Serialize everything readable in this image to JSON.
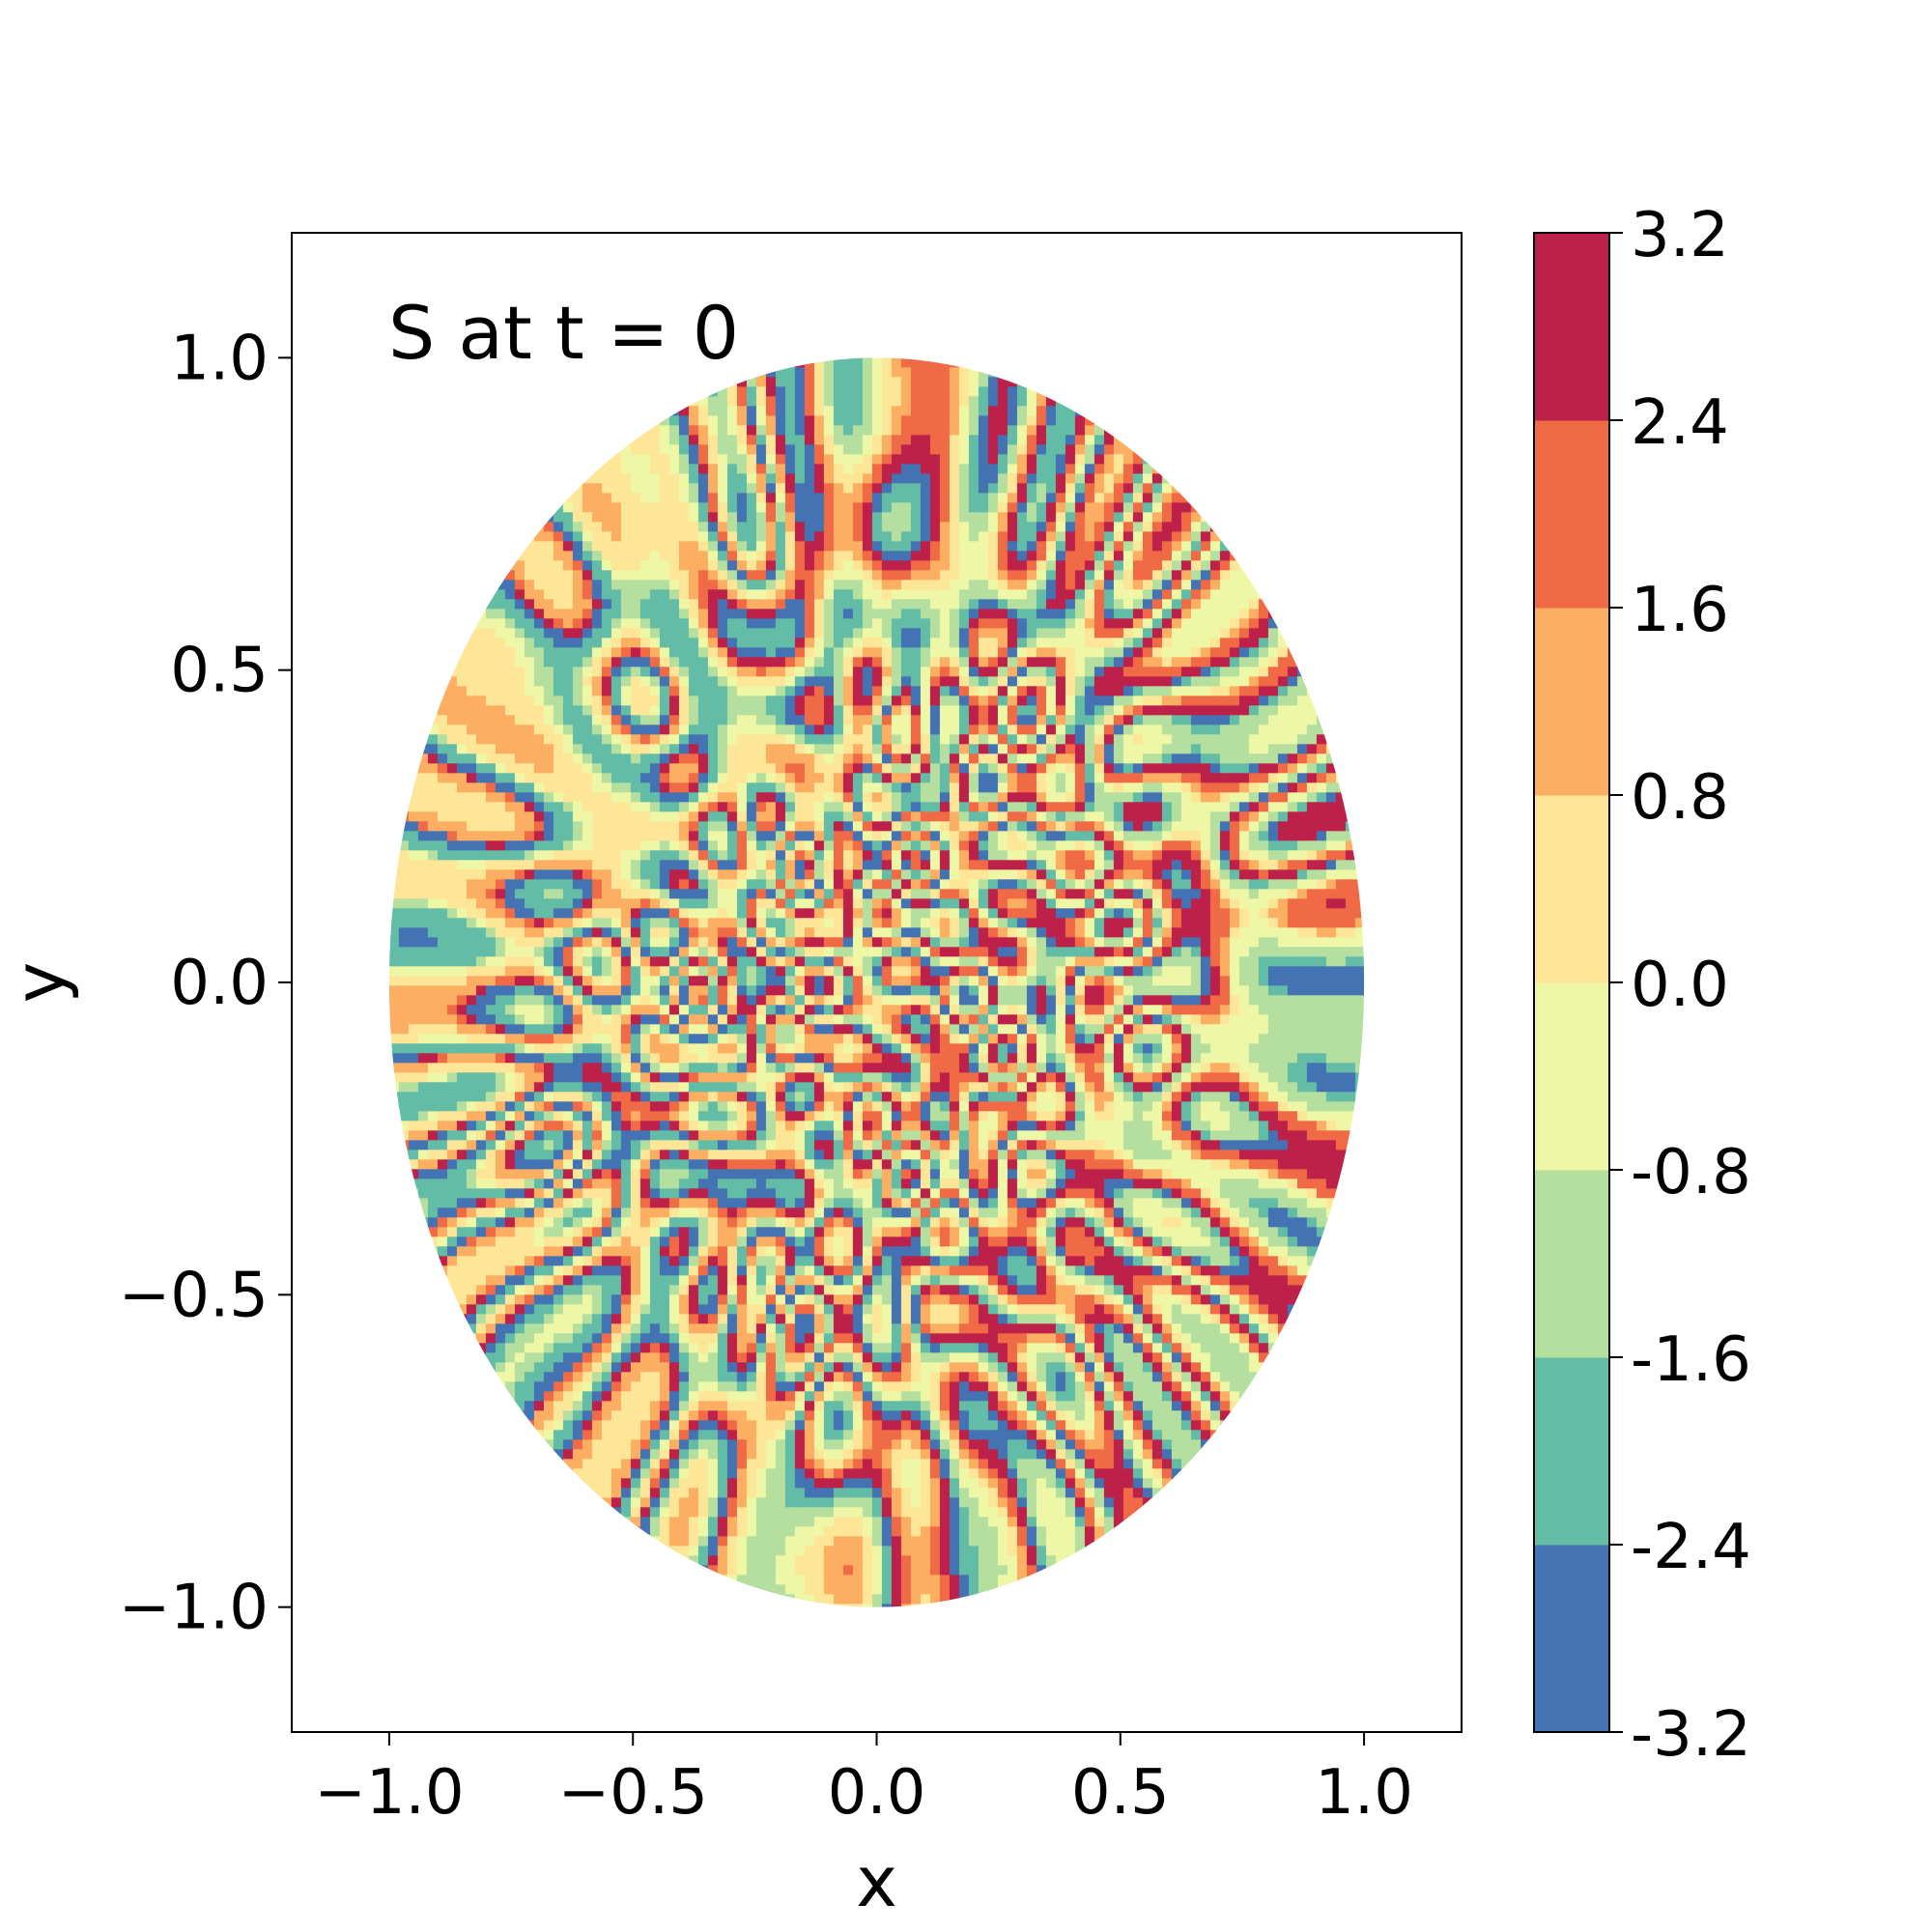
{
  "chart_data": {
    "type": "heatmap",
    "subtype": "filled-contour",
    "annotation": "S at t = 0",
    "annotation_placement": "top-left",
    "xlabel": "x",
    "ylabel": "y",
    "xlim": [
      -1.2,
      1.2
    ],
    "ylim": [
      -1.2,
      1.2
    ],
    "xticks": [
      -1.0,
      -0.5,
      0.0,
      0.5,
      1.0
    ],
    "xtick_labels": [
      "−1.0",
      "−0.5",
      "0.0",
      "0.5",
      "1.0"
    ],
    "yticks": [
      -1.0,
      -0.5,
      0.0,
      0.5,
      1.0
    ],
    "ytick_labels": [
      "−1.0",
      "−0.5",
      "0.0",
      "0.5",
      "1.0"
    ],
    "domain": {
      "shape": "disk",
      "center": [
        0,
        0
      ],
      "radius": 1.0
    },
    "grid": false,
    "colorbar": {
      "placement": "right",
      "levels": [
        -3.2,
        -2.4,
        -1.6,
        -0.8,
        0.0,
        0.8,
        1.6,
        2.4,
        3.2
      ],
      "level_labels": [
        "-3.2",
        "-2.4",
        "-1.6",
        "-0.8",
        "0.0",
        "0.8",
        "1.6",
        "2.4",
        "3.2"
      ],
      "colors": [
        "#4473b3",
        "#62bca6",
        "#b4df9f",
        "#eef7a6",
        "#fde697",
        "#fcae62",
        "#ef6a45",
        "#bd2049"
      ]
    }
  }
}
